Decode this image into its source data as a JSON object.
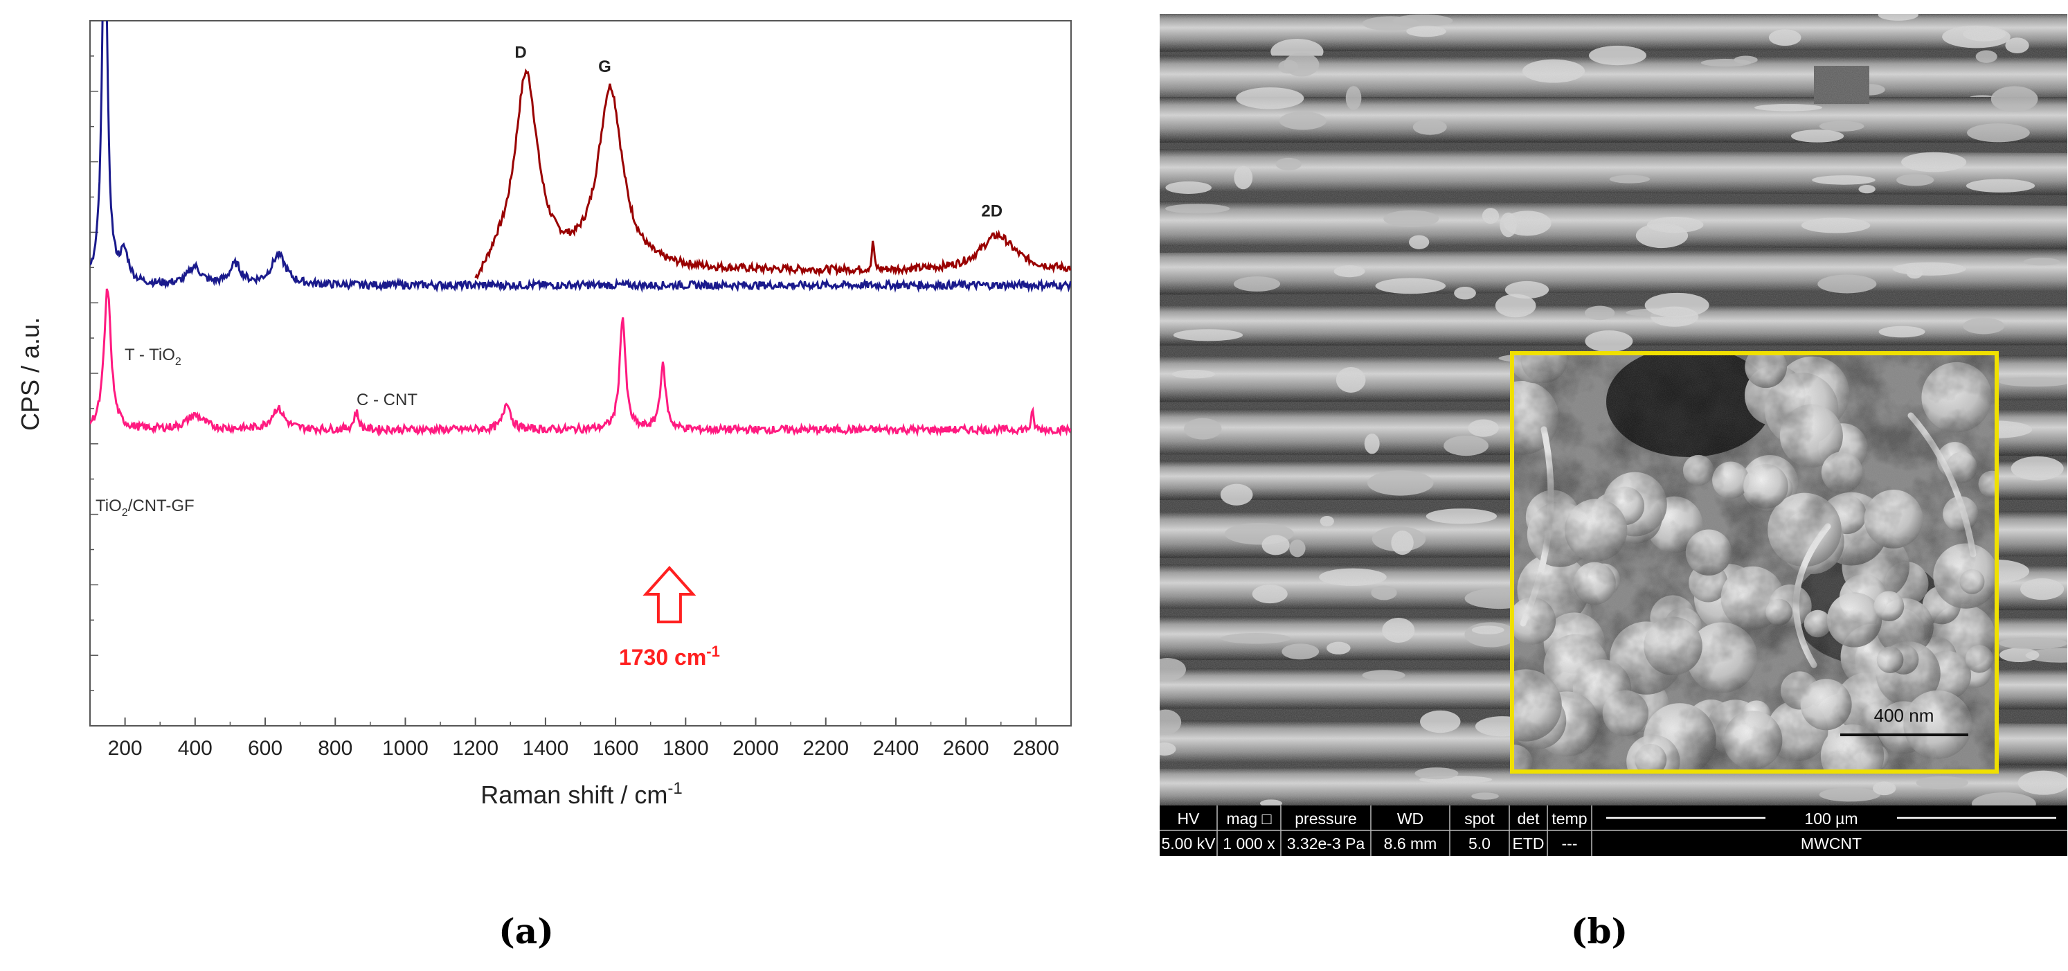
{
  "panel_labels": {
    "a": "(a)",
    "b": "(b)"
  },
  "chart_data": {
    "type": "line",
    "xlabel": "Raman shift / cm",
    "xlabel_sup": "-1",
    "ylabel": "CPS / a.u.",
    "xlim": [
      100,
      2900
    ],
    "xticks": [
      "200",
      "400",
      "600",
      "800",
      "1000",
      "1200",
      "1400",
      "1600",
      "1800",
      "2000",
      "2200",
      "2400",
      "2600",
      "2800"
    ],
    "yticks_labeled": false,
    "grid": false,
    "series": [
      {
        "name": "C - CNT",
        "color": "#990000",
        "baseline": 64.5,
        "x_start": 1200,
        "peaks": [
          {
            "x": 1345,
            "height": 27.5,
            "width": 40,
            "label": "D"
          },
          {
            "x": 1585,
            "height": 25.5,
            "width": 42,
            "label": "G"
          },
          {
            "x": 2690,
            "height": 5.0,
            "width": 60,
            "label": "2D"
          },
          {
            "x": 2335,
            "height": 4.5,
            "width": 3
          }
        ],
        "rise_to": 11
      },
      {
        "name": "T - TiO",
        "name_sub": "2",
        "color": "#1a1a8c",
        "baseline": 62.5,
        "peaks": [
          {
            "x": 142,
            "height": 55,
            "width": 9
          },
          {
            "x": 198,
            "height": 4,
            "width": 15
          },
          {
            "x": 398,
            "height": 2.5,
            "width": 22
          },
          {
            "x": 515,
            "height": 2.8,
            "width": 20
          },
          {
            "x": 638,
            "height": 4.2,
            "width": 25
          }
        ]
      },
      {
        "name": "TiO",
        "name_sub": "2",
        "name_suffix": "/CNT-GF",
        "color": "#ff1a80",
        "baseline": 42,
        "peaks": [
          {
            "x": 150,
            "height": 20,
            "width": 12
          },
          {
            "x": 400,
            "height": 2,
            "width": 30
          },
          {
            "x": 636,
            "height": 3,
            "width": 22
          },
          {
            "x": 860,
            "height": 2.5,
            "width": 8
          },
          {
            "x": 1290,
            "height": 4,
            "width": 12
          },
          {
            "x": 1620,
            "height": 16,
            "width": 10
          },
          {
            "x": 1735,
            "height": 9,
            "width": 10
          },
          {
            "x": 2790,
            "height": 2.5,
            "width": 4
          }
        ]
      }
    ],
    "annotation": {
      "text": "1730 cm",
      "sup": "-1",
      "color": "#ff2020",
      "x": 1730
    }
  },
  "sem_image": {
    "inset_scale_bar": "400 nm",
    "inset_border_color": "#f0e000",
    "databar": {
      "headers": [
        "HV",
        "mag □",
        "pressure",
        "WD",
        "spot",
        "det",
        "temp"
      ],
      "values": [
        "5.00 kV",
        "1 000 x",
        "3.32e-3 Pa",
        "8.6 mm",
        "5.0",
        "ETD",
        "---"
      ],
      "scale_label": "100 µm",
      "sample_name": "MWCNT"
    }
  }
}
